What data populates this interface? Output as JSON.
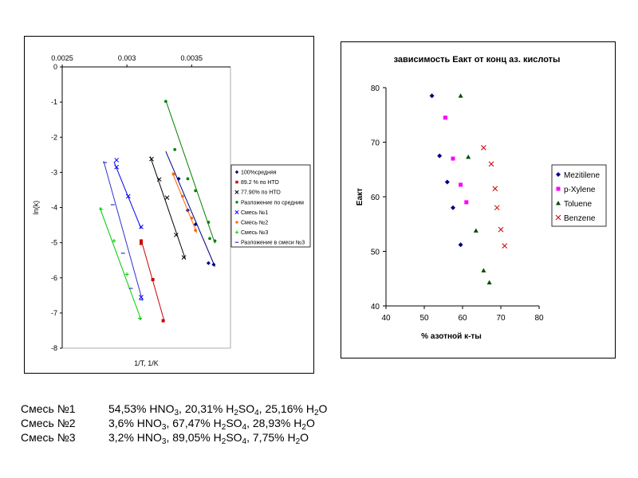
{
  "chart_data": [
    {
      "type": "scatter",
      "title": "",
      "xlabel": "1/T, 1/K",
      "ylabel": "ln(k)",
      "xlim": [
        0.0025,
        0.0038
      ],
      "ylim": [
        -8,
        0
      ],
      "x_ticks": [
        "0.0025",
        "0.003",
        "0.0035"
      ],
      "x_tick_values": [
        0.0025,
        0.003,
        0.0035
      ],
      "y_ticks": [
        "0",
        "-1",
        "-2",
        "-3",
        "-4",
        "-5",
        "-6",
        "-7",
        "-8"
      ],
      "y_tick_values": [
        0,
        -1,
        -2,
        -3,
        -4,
        -5,
        -6,
        -7,
        -8
      ],
      "x_axis_position": "top",
      "grid": false,
      "legend_position": "right",
      "series": [
        {
          "name": "100%средняя",
          "color": "#000080",
          "marker": "diamond",
          "points": [
            [
              0.0034,
              -3.18
            ],
            [
              0.00347,
              -4.08
            ],
            [
              0.00353,
              -4.48
            ],
            [
              0.00363,
              -5.58
            ],
            [
              0.00367,
              -5.62
            ]
          ],
          "fit": [
            [
              0.0033,
              -2.4
            ],
            [
              0.00368,
              -5.68
            ]
          ]
        },
        {
          "name": "89.2 % по НТО",
          "color": "#cc0000",
          "marker": "square",
          "points": [
            [
              0.00311,
              -4.95
            ],
            [
              0.00311,
              -5.02
            ],
            [
              0.0032,
              -6.05
            ],
            [
              0.00328,
              -7.22
            ]
          ],
          "fit": [
            [
              0.00311,
              -4.92
            ],
            [
              0.00329,
              -7.25
            ]
          ]
        },
        {
          "name": "77.90% по НТО",
          "color": "#000000",
          "marker": "x",
          "points": [
            [
              0.00319,
              -2.62
            ],
            [
              0.00325,
              -3.2
            ],
            [
              0.00331,
              -3.72
            ],
            [
              0.00338,
              -4.78
            ],
            [
              0.00344,
              -5.42
            ]
          ],
          "fit": [
            [
              0.00318,
              -2.55
            ],
            [
              0.00345,
              -5.45
            ]
          ]
        },
        {
          "name": "Разложение по средним",
          "color": "#008000",
          "marker": "circle",
          "points": [
            [
              0.0033,
              -0.98
            ],
            [
              0.00337,
              -2.35
            ],
            [
              0.00347,
              -3.18
            ],
            [
              0.00353,
              -3.52
            ],
            [
              0.00363,
              -4.42
            ],
            [
              0.00364,
              -4.88
            ],
            [
              0.00368,
              -4.95
            ]
          ],
          "fit": [
            [
              0.0033,
              -0.95
            ],
            [
              0.00368,
              -5.02
            ]
          ]
        },
        {
          "name": "Смесь №1",
          "color": "#0000ff",
          "marker": "x",
          "points": [
            [
              0.00292,
              -2.65
            ],
            [
              0.00292,
              -2.85
            ],
            [
              0.00301,
              -3.68
            ],
            [
              0.00311,
              -4.55
            ],
            [
              0.00311,
              -6.55
            ]
          ],
          "fit": [
            [
              0.0029,
              -2.7
            ],
            [
              0.00311,
              -4.6
            ]
          ]
        },
        {
          "name": "Смесь №2",
          "color": "#ff6600",
          "marker": "circle",
          "points": [
            [
              0.00336,
              -3.05
            ],
            [
              0.00343,
              -3.68
            ],
            [
              0.0035,
              -4.3
            ],
            [
              0.00353,
              -4.65
            ]
          ],
          "fit": [
            [
              0.00335,
              -3.0
            ],
            [
              0.00354,
              -4.72
            ]
          ]
        },
        {
          "name": "Смесь №3",
          "color": "#00cc00",
          "marker": "plus",
          "points": [
            [
              0.0028,
              -4.05
            ],
            [
              0.0029,
              -4.95
            ],
            [
              0.003,
              -5.9
            ],
            [
              0.0031,
              -7.15
            ]
          ],
          "fit": [
            [
              0.00279,
              -4.0
            ],
            [
              0.00311,
              -7.2
            ]
          ]
        },
        {
          "name": "Разложение в смеси №3",
          "color": "#3333cc",
          "marker": "dash",
          "points": [
            [
              0.00283,
              -2.72
            ],
            [
              0.00289,
              -3.92
            ],
            [
              0.00297,
              -5.3
            ],
            [
              0.00303,
              -6.3
            ],
            [
              0.00311,
              -6.62
            ]
          ],
          "fit": [
            [
              0.00282,
              -2.68
            ],
            [
              0.00312,
              -6.65
            ]
          ]
        }
      ]
    },
    {
      "type": "scatter",
      "title": "зависимость Еакт от конц аз. кислоты",
      "xlabel": "% азотной к-ты",
      "ylabel": "Еакт",
      "xlim": [
        40,
        80
      ],
      "ylim": [
        40,
        80
      ],
      "x_ticks": [
        "40",
        "50",
        "60",
        "70",
        "80"
      ],
      "x_tick_values": [
        40,
        50,
        60,
        70,
        80
      ],
      "y_ticks": [
        "40",
        "50",
        "60",
        "70",
        "80"
      ],
      "y_tick_values": [
        40,
        50,
        60,
        70,
        80
      ],
      "grid": false,
      "legend_position": "right",
      "series": [
        {
          "name": "Mezitilene",
          "color": "#000080",
          "marker": "diamond",
          "points": [
            [
              52,
              78.5
            ],
            [
              54,
              67.5
            ],
            [
              56,
              62.7
            ],
            [
              57.5,
              58
            ],
            [
              59.5,
              51.2
            ]
          ]
        },
        {
          "name": "p-Xylene",
          "color": "#ff00ff",
          "marker": "square",
          "points": [
            [
              55.5,
              74.5
            ],
            [
              57.5,
              67
            ],
            [
              59.5,
              62.2
            ],
            [
              61,
              59
            ]
          ]
        },
        {
          "name": "Toluene",
          "color": "#004d00",
          "marker": "triangle",
          "points": [
            [
              59.5,
              78.5
            ],
            [
              61.5,
              67.3
            ],
            [
              63.5,
              53.8
            ],
            [
              65.5,
              46.5
            ],
            [
              67,
              44.3
            ]
          ]
        },
        {
          "name": "Benzene",
          "color": "#cc0000",
          "marker": "x",
          "points": [
            [
              65.5,
              69
            ],
            [
              67.5,
              66
            ],
            [
              68.5,
              61.5
            ],
            [
              69,
              58
            ],
            [
              70,
              54
            ],
            [
              71,
              51
            ]
          ]
        }
      ]
    }
  ],
  "mixtures": [
    {
      "label": "Смесь №1",
      "parts": [
        {
          "value": "54,53% HNO",
          "sub": "3",
          "tail": ", "
        },
        {
          "value": "20,31% H",
          "sub": "2",
          "tail": "SO"
        },
        {
          "value": "",
          "sub": "4",
          "tail": ", 25,16% H"
        },
        {
          "value": "",
          "sub": "2",
          "tail": "O"
        }
      ]
    },
    {
      "label": "Смесь №2",
      "parts": [
        {
          "value": "3,6% HNO",
          "sub": "3",
          "tail": ", "
        },
        {
          "value": "67,47% H",
          "sub": "2",
          "tail": "SO"
        },
        {
          "value": "",
          "sub": "4",
          "tail": ", 28,93% H"
        },
        {
          "value": "",
          "sub": "2",
          "tail": "O"
        }
      ]
    },
    {
      "label": "Смесь №3",
      "parts": [
        {
          "value": "3,2% HNO",
          "sub": "3",
          "tail": ", "
        },
        {
          "value": "89,05% H",
          "sub": "2",
          "tail": "SO"
        },
        {
          "value": "",
          "sub": "4",
          "tail": ", 7,75% H"
        },
        {
          "value": "",
          "sub": "2",
          "tail": "O"
        }
      ]
    }
  ]
}
